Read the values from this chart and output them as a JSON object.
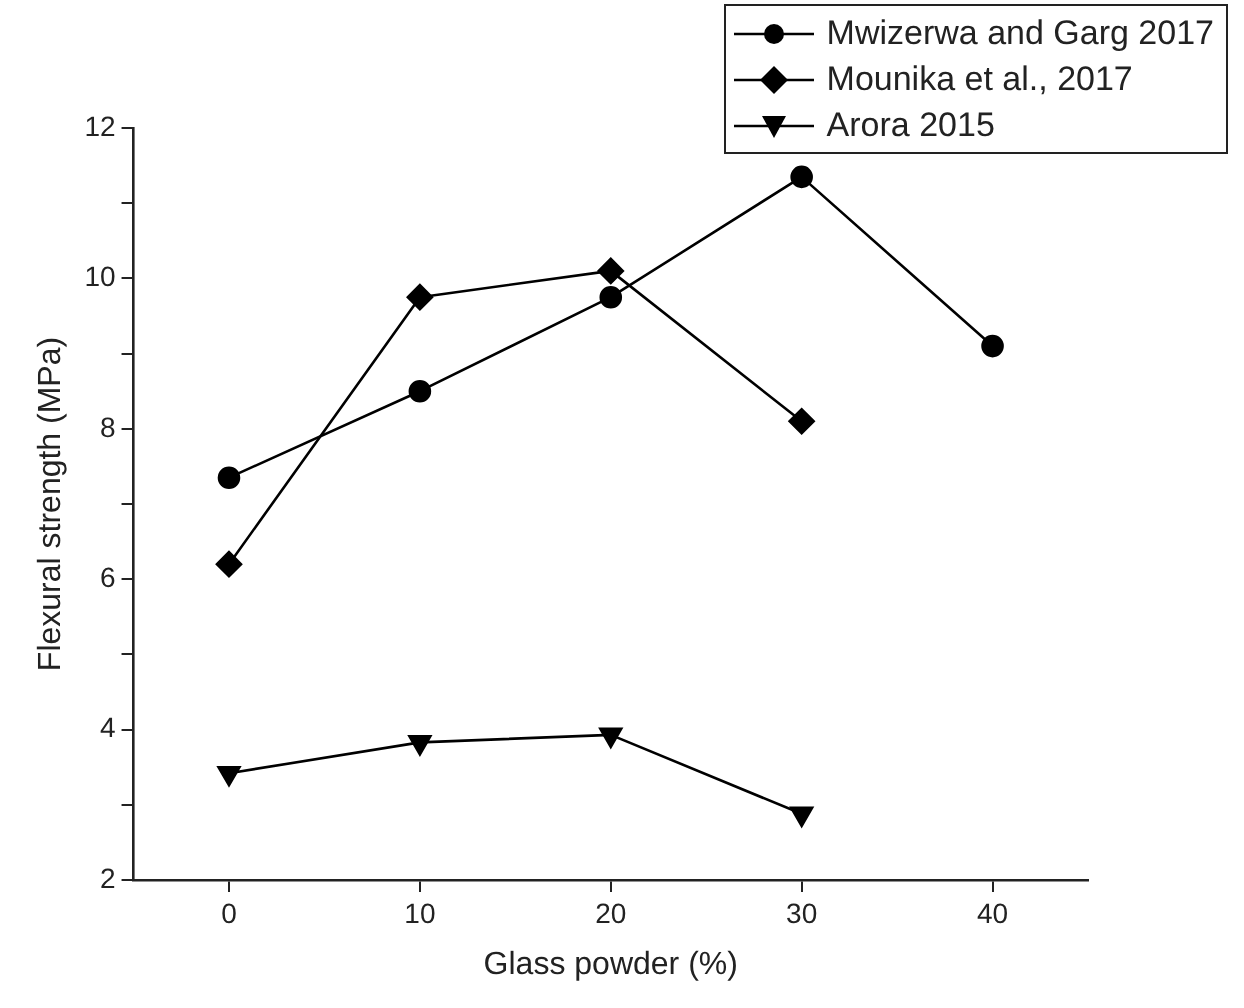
{
  "chart_data": {
    "type": "line",
    "xlabel": "Glass powder (%)",
    "ylabel": "Flexural strength (MPa)",
    "x": [
      0,
      10,
      20,
      30,
      40
    ],
    "series": [
      {
        "name": "Mwizerwa and Garg 2017",
        "color": "#000000",
        "marker": "circle",
        "values": [
          7.35,
          8.5,
          9.75,
          11.35,
          9.1
        ]
      },
      {
        "name": "Mounika et al., 2017",
        "color": "#000000",
        "marker": "diamond",
        "values": [
          6.2,
          9.75,
          10.1,
          8.1,
          null
        ]
      },
      {
        "name": "Arora 2015",
        "color": "#000000",
        "marker": "triangle-down",
        "values": [
          3.42,
          3.83,
          3.93,
          2.88,
          null
        ]
      }
    ],
    "xlim": [
      -5,
      45
    ],
    "xticks": [
      0,
      10,
      20,
      30,
      40
    ],
    "ylim": [
      2,
      12
    ],
    "yticks": [
      2,
      {
        "value": 3,
        "label": null
      },
      4,
      {
        "value": 5,
        "label": null
      },
      6,
      {
        "value": 7,
        "label": null
      },
      8,
      {
        "value": 9,
        "label": null
      },
      10,
      {
        "value": 11,
        "label": null
      },
      12
    ],
    "grid": false,
    "legend": "top right"
  }
}
